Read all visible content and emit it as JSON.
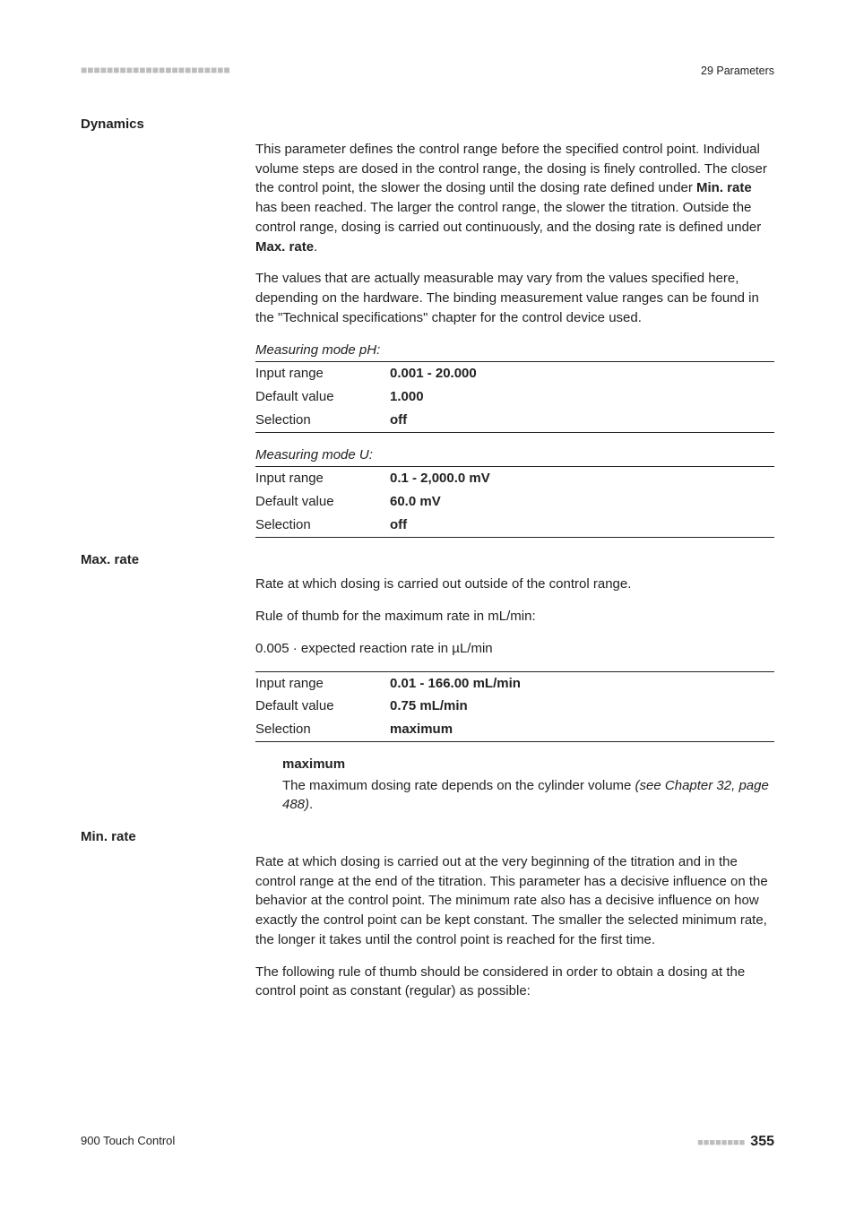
{
  "header": {
    "left_marks": "■■■■■■■■■■■■■■■■■■■■■■■",
    "chapter": "29 Parameters"
  },
  "sections": [
    {
      "heading": "Dynamics",
      "paragraphs": [
        {
          "segments": [
            {
              "t": "This parameter defines the control range before the specified control point. Individual volume steps are dosed in the control range, the dosing is finely controlled. The closer the control point, the slower the dosing until the dosing rate defined under "
            },
            {
              "t": "Min. rate",
              "b": true
            },
            {
              "t": " has been reached. The larger the control range, the slower the titration. Outside the control range, dosing is carried out continuously, and the dosing rate is defined under "
            },
            {
              "t": "Max. rate",
              "b": true
            },
            {
              "t": "."
            }
          ]
        },
        {
          "segments": [
            {
              "t": "The values that are actually measurable may vary from the values specified here, depending on the hardware. The binding measurement value ranges can be found in the \"Technical specifications\" chapter for the control device used."
            }
          ]
        }
      ],
      "kv_groups": [
        {
          "caption": "Measuring mode pH:",
          "rows": [
            {
              "k": "Input range",
              "v": "0.001 - 20.000"
            },
            {
              "k": "Default value",
              "v": "1.000"
            },
            {
              "k": "Selection",
              "v": "off"
            }
          ]
        },
        {
          "caption": "Measuring mode U:",
          "rows": [
            {
              "k": "Input range",
              "v": "0.1 - 2,000.0 mV"
            },
            {
              "k": "Default value",
              "v": "60.0 mV"
            },
            {
              "k": "Selection",
              "v": "off"
            }
          ]
        }
      ]
    },
    {
      "heading": "Max. rate",
      "paragraphs": [
        {
          "segments": [
            {
              "t": "Rate at which dosing is carried out outside of the control range."
            }
          ]
        },
        {
          "segments": [
            {
              "t": "Rule of thumb for the maximum rate in mL/min:"
            }
          ]
        },
        {
          "segments": [
            {
              "t": "0.005 · expected reaction rate in µL/min"
            }
          ]
        }
      ],
      "kv_groups": [
        {
          "rows": [
            {
              "k": "Input range",
              "v": "0.01 - 166.00 mL/min"
            },
            {
              "k": "Default value",
              "v": "0.75 mL/min"
            },
            {
              "k": "Selection",
              "v": "maximum"
            }
          ]
        }
      ],
      "selection": {
        "term": "maximum",
        "desc_segments": [
          {
            "t": "The maximum dosing rate depends on the cylinder volume "
          },
          {
            "t": "(see Chapter 32, page 488)",
            "i": true
          },
          {
            "t": "."
          }
        ]
      }
    },
    {
      "heading": "Min. rate",
      "paragraphs": [
        {
          "segments": [
            {
              "t": "Rate at which dosing is carried out at the very beginning of the titration and in the control range at the end of the titration. This parameter has a decisive influence on the behavior at the control point. The minimum rate also has a decisive influence on how exactly the control point can be kept constant. The smaller the selected minimum rate, the longer it takes until the control point is reached for the first time."
            }
          ]
        },
        {
          "segments": [
            {
              "t": "The following rule of thumb should be considered in order to obtain a dosing at the control point as constant (regular) as possible:"
            }
          ]
        }
      ]
    }
  ],
  "footer": {
    "product": "900 Touch Control",
    "dashes": "■■■■■■■■",
    "page": "355"
  }
}
